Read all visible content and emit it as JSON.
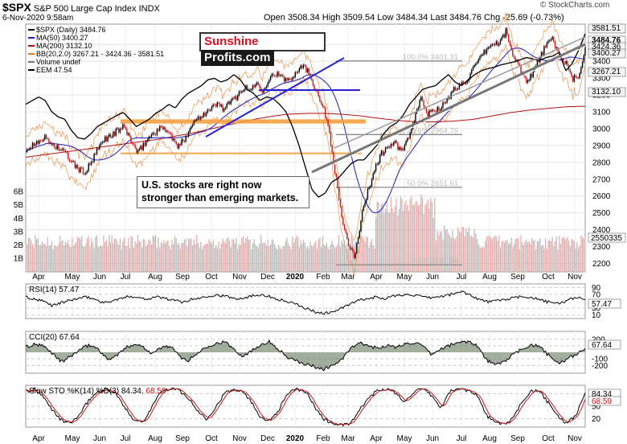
{
  "header": {
    "symbol": "$SPX",
    "name": "S&P 500 Large Cap Index",
    "exchange": "INDX",
    "date": "6-Nov-2020 9:58am",
    "stats": "Open 3508.34  High 3509.54  Low 3484.34  Last 3484.76  Chg -25.69 (-0.73%)",
    "source": "© StockCharts.com"
  },
  "logo": {
    "part1": "Sunshine",
    "part2": "Profits.com"
  },
  "annotation": {
    "line1": "U.S. stocks are right now",
    "line2": "stronger than emerging markets."
  },
  "legend": [
    {
      "text": "$SPX (Daily) 3484.76",
      "color": "#000000"
    },
    {
      "text": "MA(50) 3400.27",
      "color": "#1c1cc0"
    },
    {
      "text": "MA(200) 3132.10",
      "color": "#b01010"
    },
    {
      "text": "BB(20,2.0) 3267.21 - 3424.36 - 3581.51",
      "color": "#e07818"
    },
    {
      "text": "Volume undef",
      "color": "#777777"
    },
    {
      "text": "EEM 47.54",
      "color": "#000000"
    }
  ],
  "colors": {
    "up": "#000000",
    "down": "#c81818",
    "ma50": "#1c1cc0",
    "ma200": "#b01010",
    "bb": "#e8a060",
    "eem": "#000000",
    "fib": "#888888",
    "support": "#f5a040",
    "trendline": "#2222dd"
  },
  "chart_data": [
    {
      "type": "candlestick",
      "panel": "price",
      "ylim": [
        2150,
        3620
      ],
      "y_ticks": [
        2200,
        2300,
        2400,
        2500,
        2600,
        2700,
        2800,
        2900,
        3000,
        3100,
        3200,
        3300,
        3400,
        3500
      ],
      "x_months": [
        "Apr",
        "May",
        "Jun",
        "Jul",
        "Aug",
        "Sep",
        "Oct",
        "Nov",
        "Dec",
        "2020",
        "Feb",
        "Mar",
        "Apr",
        "May",
        "Jun",
        "Jul",
        "Aug",
        "Sep",
        "Oct",
        "Nov"
      ],
      "right_labels": [
        "3581.51",
        "3484.76",
        "3424.36",
        "3400.27",
        "3267.21",
        "3132.10"
      ],
      "spx_close": [
        2870,
        2900,
        2935,
        2945,
        2905,
        2885,
        2855,
        2800,
        2760,
        2740,
        2800,
        2880,
        2940,
        2960,
        2990,
        3010,
        2930,
        2850,
        2910,
        2960,
        2990,
        3010,
        2960,
        2890,
        2930,
        3010,
        3060,
        3090,
        3110,
        3150,
        3120,
        3150,
        3190,
        3240,
        3230,
        3270,
        3230,
        3300,
        3330,
        3295,
        3290,
        3335,
        3380,
        3330,
        3240,
        3150,
        3010,
        2740,
        2480,
        2300,
        2240,
        2480,
        2630,
        2760,
        2850,
        2890,
        2920,
        2860,
        2930,
        3040,
        3190,
        3080,
        3110,
        3130,
        3160,
        3230,
        3260,
        3290,
        3350,
        3410,
        3470,
        3500,
        3510,
        3580,
        3430,
        3370,
        3280,
        3330,
        3410,
        3490,
        3530,
        3440,
        3390,
        3290,
        3310,
        3485
      ],
      "eem": [
        43.5,
        44.0,
        44.5,
        44.0,
        42.5,
        41.8,
        41.5,
        40.0,
        39.0,
        38.8,
        39.5,
        40.5,
        41.0,
        41.5,
        42.0,
        42.4,
        41.5,
        40.5,
        41.0,
        41.5,
        42.3,
        42.8,
        43.5,
        43.0,
        44.2,
        45.0,
        45.5,
        46.0,
        46.8,
        47.0,
        46.5,
        46.8,
        47.5,
        46.8,
        45.5,
        45.0,
        44.0,
        44.5,
        44.3,
        43.5,
        42.5,
        40.5,
        38.0,
        35.0,
        32.0,
        31.0,
        31.5,
        33.0,
        33.5,
        34.5,
        35.5,
        36.0,
        36.0,
        37.0,
        38.0,
        39.5,
        40.5,
        41.0,
        42.0,
        43.5,
        44.5,
        45.5,
        45.8,
        46.0,
        46.8,
        47.5,
        46.5,
        46.0,
        46.8,
        47.5,
        48.0,
        48.3,
        48.5,
        48.8,
        49.0,
        49.2,
        49.5,
        49.8,
        49.6,
        49.4,
        49.8,
        50.0,
        50.5,
        48.0,
        49.0,
        50.8,
        53.0
      ],
      "ma200_values": [
        2830,
        2845,
        2860,
        2875,
        2890,
        2905,
        2920,
        2935,
        2955,
        2975,
        3000,
        3025,
        3050,
        3070,
        3085,
        3090,
        3090,
        3085,
        3075,
        3060,
        3048,
        3040,
        3040,
        3045,
        3055,
        3075,
        3095,
        3110,
        3120,
        3130,
        3133
      ],
      "fib_levels": [
        {
          "label": "100.0% 3401.31",
          "value": 3401.31
        },
        {
          "label": "23.6% 2964.76",
          "value": 2964.76
        },
        {
          "label": "50.0% 2651.61",
          "value": 2651.61
        },
        {
          "label": "0.0% 2191.86",
          "value": 2191.86
        }
      ]
    },
    {
      "type": "bar",
      "panel": "volume",
      "ylabel": "Volume",
      "y_ticks": [
        "1B",
        "2B",
        "3B",
        "4B",
        "5B",
        "6B"
      ],
      "right_label": "2550335"
    },
    {
      "type": "line",
      "panel": "RSI",
      "name": "RSI(14) 57.47",
      "ylim": [
        0,
        100
      ],
      "y_ticks": [
        10,
        30,
        70,
        90
      ],
      "right_label": "57.47",
      "values": [
        62,
        55,
        50,
        38,
        45,
        52,
        58,
        62,
        55,
        45,
        52,
        58,
        65,
        60,
        57,
        63,
        58,
        52,
        48,
        55,
        60,
        66,
        68,
        63,
        58,
        60,
        66,
        70,
        62,
        55,
        48,
        40,
        30,
        20,
        15,
        18,
        28,
        40,
        52,
        56,
        62,
        58,
        64,
        68,
        70,
        64,
        59,
        62,
        66,
        72,
        78,
        66,
        54,
        48,
        52,
        56,
        60,
        64,
        60,
        52,
        46,
        44,
        52,
        62,
        57
      ]
    },
    {
      "type": "line",
      "panel": "CCI",
      "name": "CCI(20) 67.64",
      "ylim": [
        -320,
        320
      ],
      "y_ticks": [
        -200,
        -100,
        100,
        200
      ],
      "right_label": "67.64",
      "values": [
        80,
        120,
        90,
        -20,
        -150,
        -60,
        40,
        110,
        60,
        -110,
        -60,
        60,
        130,
        90,
        -20,
        70,
        100,
        -60,
        -130,
        -20,
        90,
        130,
        160,
        60,
        -60,
        20,
        120,
        160,
        50,
        -80,
        -140,
        -180,
        -220,
        -260,
        -200,
        -120,
        60,
        140,
        100,
        60,
        110,
        70,
        130,
        150,
        90,
        -40,
        50,
        110,
        150,
        170,
        110,
        -110,
        -200,
        -140,
        -40,
        50,
        120,
        80,
        -60,
        -170,
        -110,
        -30,
        68
      ]
    },
    {
      "type": "line",
      "panel": "Slow STO",
      "name": "Slow STO %K(14) %D(3) 84.34, 68.59",
      "series": [
        {
          "name": "%K(14)",
          "color": "#000000"
        },
        {
          "name": "%D(3)",
          "color": "#c81818"
        }
      ],
      "ylim": [
        0,
        100
      ],
      "y_ticks": [
        20,
        50,
        80
      ],
      "right_labels": [
        "84.34",
        "68.59"
      ],
      "values": [
        85,
        90,
        70,
        40,
        15,
        10,
        30,
        65,
        85,
        90,
        80,
        45,
        18,
        12,
        50,
        85,
        92,
        88,
        70,
        40,
        20,
        45,
        80,
        90,
        88,
        60,
        25,
        15,
        40,
        80,
        90,
        86,
        50,
        20,
        8,
        5,
        8,
        40,
        70,
        88,
        92,
        80,
        60,
        85,
        90,
        75,
        45,
        85,
        92,
        88,
        78,
        30,
        10,
        8,
        20,
        60,
        88,
        84,
        55,
        25,
        8,
        30,
        84
      ]
    }
  ]
}
